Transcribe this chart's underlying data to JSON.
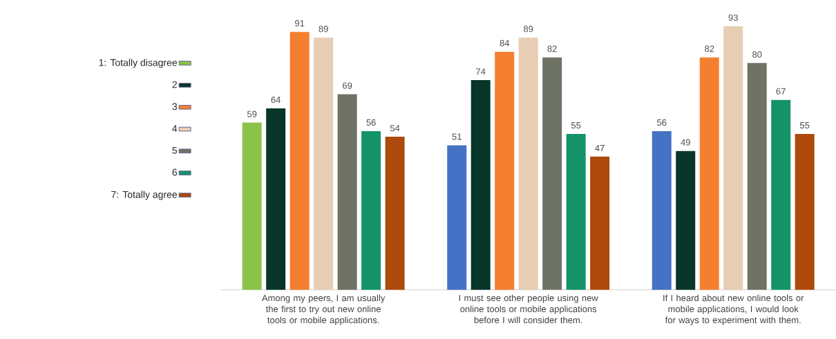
{
  "chart_data": {
    "type": "bar",
    "categories": [
      "Among my peers, I am usually the first to try out new online tools or mobile applications.",
      "I must see other people using new online tools or mobile applications before I will consider them.",
      "If I heard about new online tools or mobile applications, I would look for ways to experiment with them."
    ],
    "series": [
      {
        "name": "1: Totally disagree",
        "color": "#8bc34a",
        "colors": [
          "#8bc34a",
          "#4472c4",
          "#4472c4"
        ],
        "values": [
          59,
          51,
          56
        ]
      },
      {
        "name": "2",
        "color": "#08352a",
        "values": [
          64,
          74,
          49
        ]
      },
      {
        "name": "3",
        "color": "#f47f31",
        "values": [
          91,
          84,
          82
        ]
      },
      {
        "name": "4",
        "color": "#e6cdb4",
        "values": [
          89,
          89,
          93
        ]
      },
      {
        "name": "5",
        "color": "#6f7365",
        "values": [
          69,
          82,
          80
        ]
      },
      {
        "name": "6",
        "color": "#149369",
        "values": [
          56,
          55,
          67
        ]
      },
      {
        "name": "7: Totally agree",
        "color": "#ad4a0c",
        "values": [
          54,
          47,
          55
        ]
      }
    ],
    "data_labels": true,
    "legend": "left"
  }
}
